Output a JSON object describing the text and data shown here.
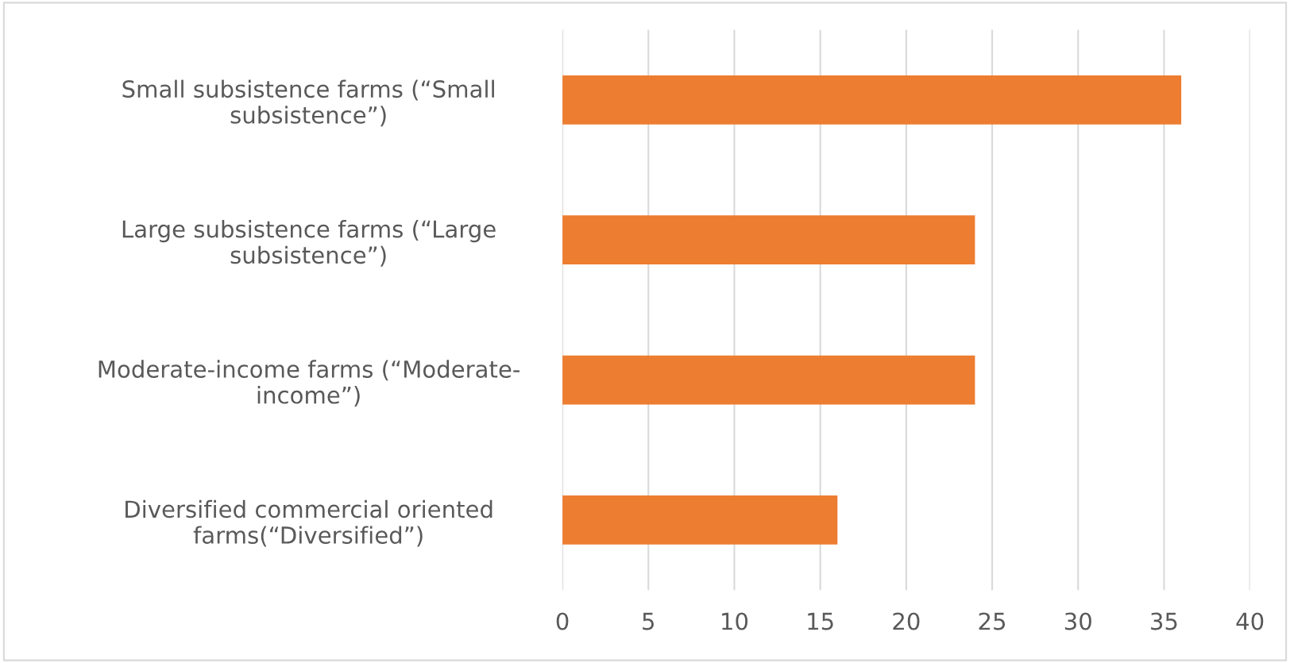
{
  "chart_data": {
    "type": "bar",
    "orientation": "horizontal",
    "categories": [
      "Small subsistence farms (“Small\nsubsistence”)",
      "Large subsistence farms (“Large\nsubsistence”)",
      "Moderate-income farms (“Moderate-\nincome”)",
      "Diversified commercial oriented\nfarms(“Diversified”)"
    ],
    "values": [
      36,
      24,
      24,
      16
    ],
    "color": "#ed7d31",
    "xlim": [
      0,
      40
    ],
    "xticks": [
      0,
      5,
      10,
      15,
      20,
      25,
      30,
      35,
      40
    ],
    "grid": "x"
  }
}
